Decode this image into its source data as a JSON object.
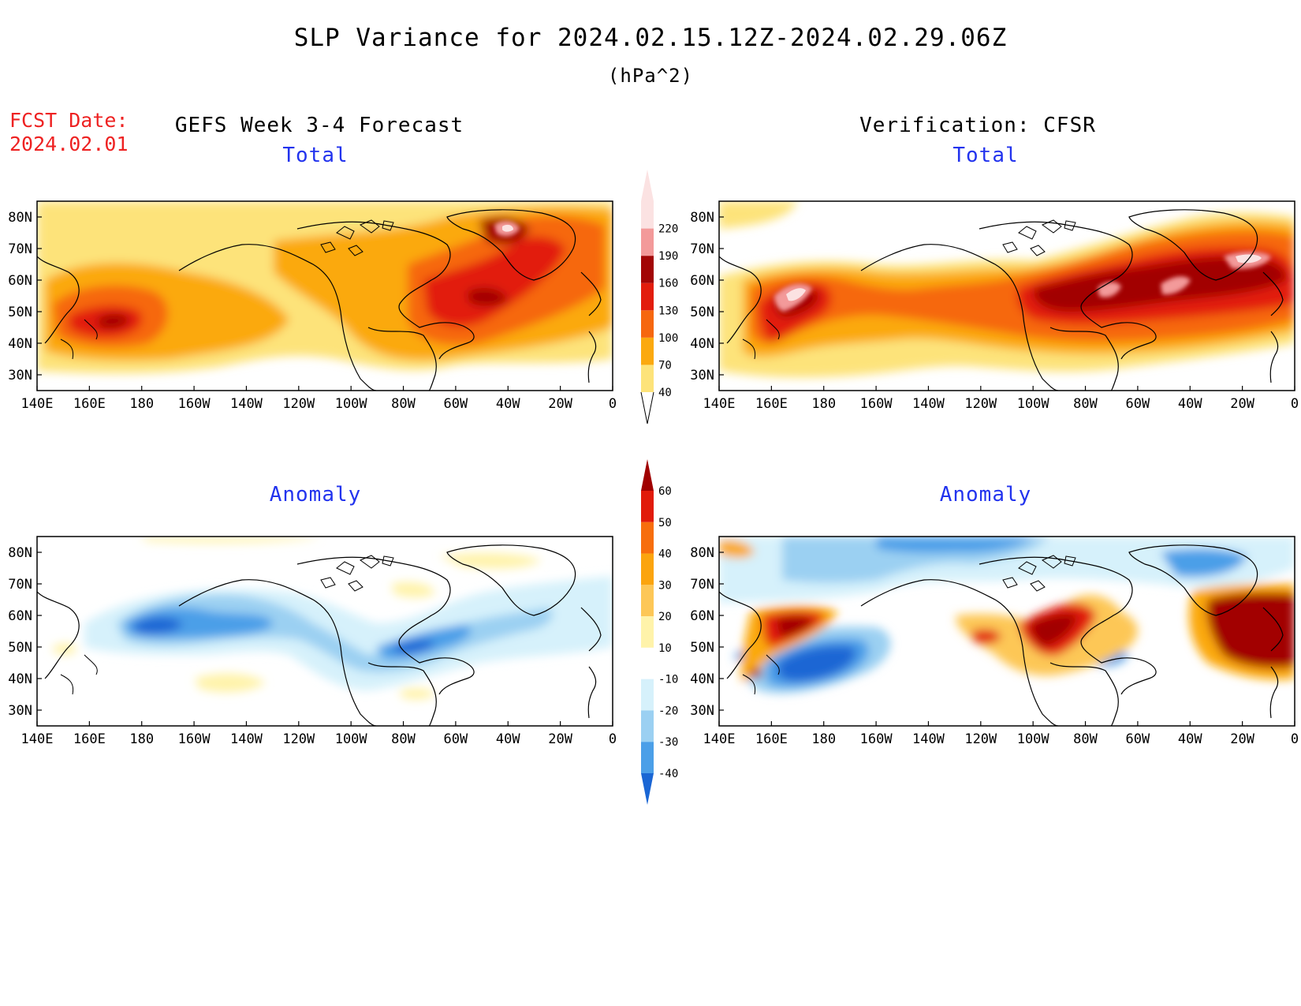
{
  "figure": {
    "title": "SLP Variance for 2024.02.15.12Z-2024.02.29.06Z",
    "units": "(hPa^2)",
    "fcst_date_label": "FCST Date:",
    "fcst_date_value": "2024.02.01",
    "left_header": "GEFS Week 3-4 Forecast",
    "right_header": "Verification: CFSR"
  },
  "panels": [
    {
      "id": "gefs-total",
      "title": "Total"
    },
    {
      "id": "cfsr-total",
      "title": "Total"
    },
    {
      "id": "gefs-anomaly",
      "title": "Anomaly"
    },
    {
      "id": "cfsr-anomaly",
      "title": "Anomaly"
    }
  ],
  "axes": {
    "lon_ticks": [
      "140E",
      "160E",
      "180",
      "160W",
      "140W",
      "120W",
      "100W",
      "80W",
      "60W",
      "40W",
      "20W",
      "0"
    ],
    "lat_ticks": [
      "80N",
      "70N",
      "60N",
      "50N",
      "40N",
      "30N"
    ],
    "lon_range": [
      140,
      360
    ],
    "lat_range": [
      25,
      85
    ]
  },
  "colorbars": {
    "total": {
      "levels": [
        "40",
        "70",
        "100",
        "130",
        "160",
        "190",
        "220"
      ],
      "colors": [
        "#fde37a",
        "#fba90f",
        "#f6670f",
        "#e21d0d",
        "#a20606",
        "#f39a9a",
        "#fbe2e2"
      ]
    },
    "anomaly": {
      "levels": [
        "60",
        "50",
        "40",
        "30",
        "20",
        "10",
        "-10",
        "-20",
        "-30",
        "-40"
      ],
      "colors": [
        "#a00000",
        "#e11b0a",
        "#f76e0d",
        "#fba40e",
        "#fdc757",
        "#fff3aa",
        "#ffffff",
        "#d6f1fb",
        "#9bd0f2",
        "#4b9fe8",
        "#1a66d4"
      ]
    }
  }
}
